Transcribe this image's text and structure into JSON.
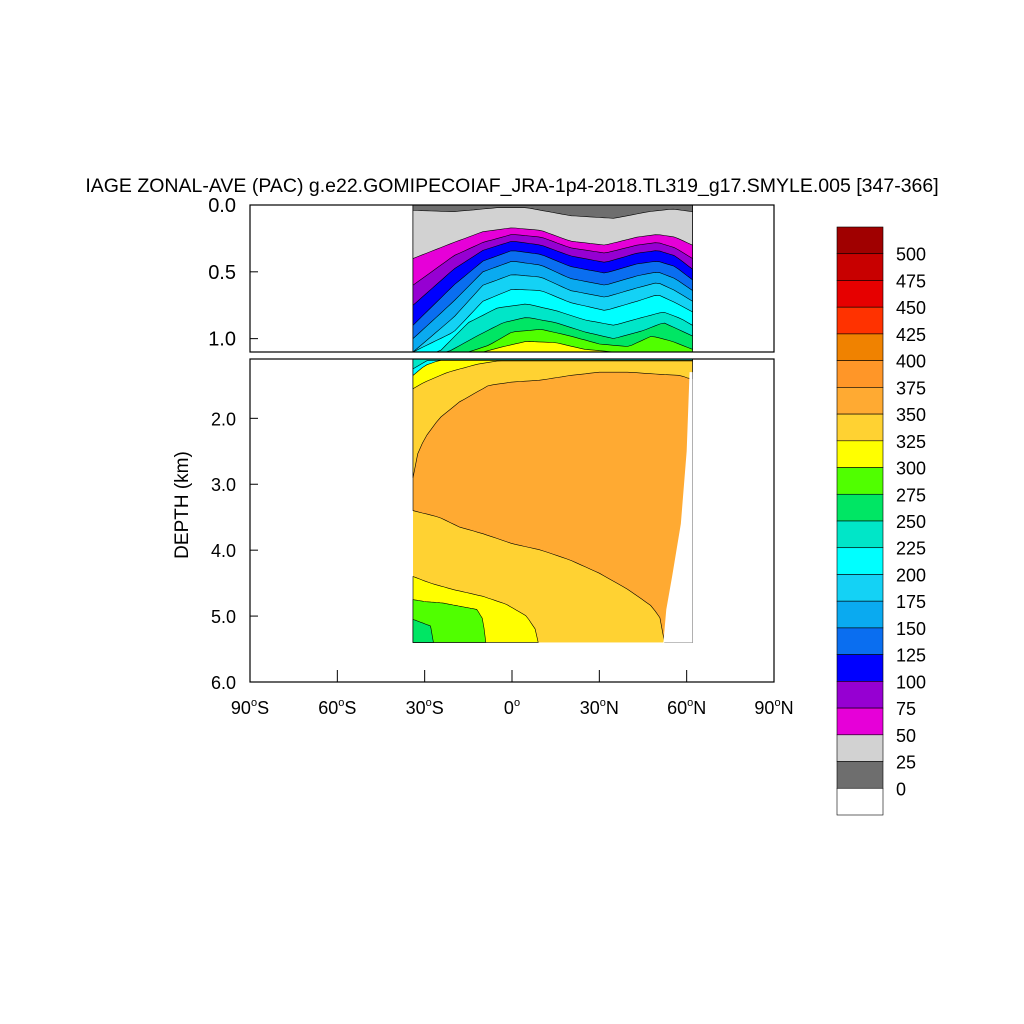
{
  "chart_data": {
    "type": "heatmap",
    "title": "IAGE ZONAL-AVE (PAC) g.e22.GOMIPECOIAF_JRA-1p4-2018.TL319_g17.SMYLE.005 [347-366]",
    "xlabel": "",
    "ylabel": "DEPTH (km)",
    "xlim": [
      -90,
      90
    ],
    "x_ticks": [
      {
        "value": -90,
        "label": "90",
        "suffix": "S"
      },
      {
        "value": -60,
        "label": "60",
        "suffix": "S"
      },
      {
        "value": -30,
        "label": "30",
        "suffix": "S"
      },
      {
        "value": 0,
        "label": "0",
        "suffix": ""
      },
      {
        "value": 30,
        "label": "30",
        "suffix": "N"
      },
      {
        "value": 60,
        "label": "60",
        "suffix": "N"
      },
      {
        "value": 90,
        "label": "90",
        "suffix": "N"
      }
    ],
    "upper_panel": {
      "ylim": [
        0.0,
        1.1
      ],
      "y_ticks": [
        "0.0",
        "0.5",
        "1.0"
      ],
      "y_tick_values": [
        0.0,
        0.5,
        1.0
      ]
    },
    "lower_panel": {
      "ylim": [
        1.1,
        6.0
      ],
      "y_ticks": [
        "2.0",
        "3.0",
        "4.0",
        "5.0",
        "6.0"
      ],
      "y_tick_values": [
        2.0,
        3.0,
        4.0,
        5.0,
        6.0
      ]
    },
    "data_extent": {
      "lat_min": -34,
      "lat_max": 62,
      "depth_max": 5.4
    },
    "colorbar": {
      "levels": [
        "0",
        "25",
        "50",
        "75",
        "100",
        "125",
        "150",
        "175",
        "200",
        "225",
        "250",
        "275",
        "300",
        "325",
        "350",
        "375",
        "400",
        "425",
        "450",
        "475",
        "500"
      ],
      "colors": [
        "#ffffff",
        "#6e6e6e",
        "#d2d2d2",
        "#e600d8",
        "#9600d2",
        "#0000ff",
        "#0a6ef0",
        "#0aaaf0",
        "#14d2f5",
        "#00ffff",
        "#00e6c8",
        "#00e664",
        "#50ff00",
        "#ffff00",
        "#ffd232",
        "#ffaa32",
        "#ff9628",
        "#f08200",
        "#ff3200",
        "#e60000",
        "#c80000",
        "#a00000"
      ]
    },
    "bands_upper": [
      {
        "color": "#6e6e6e",
        "depth_at_lat": [
          [
            -34,
            0.04
          ],
          [
            -20,
            0.05
          ],
          [
            -5,
            0.02
          ],
          [
            5,
            0.02
          ],
          [
            20,
            0.08
          ],
          [
            35,
            0.1
          ],
          [
            47,
            0.05
          ],
          [
            55,
            0.03
          ],
          [
            62,
            0.05
          ]
        ]
      },
      {
        "color": "#d2d2d2",
        "depth_at_lat": [
          [
            -34,
            0.4
          ],
          [
            -20,
            0.28
          ],
          [
            -10,
            0.2
          ],
          [
            0,
            0.17
          ],
          [
            10,
            0.19
          ],
          [
            20,
            0.27
          ],
          [
            32,
            0.3
          ],
          [
            43,
            0.24
          ],
          [
            50,
            0.22
          ],
          [
            56,
            0.24
          ],
          [
            62,
            0.3
          ]
        ]
      },
      {
        "color": "#e600d8",
        "depth_at_lat": [
          [
            -34,
            0.6
          ],
          [
            -20,
            0.38
          ],
          [
            -10,
            0.28
          ],
          [
            0,
            0.22
          ],
          [
            10,
            0.24
          ],
          [
            20,
            0.32
          ],
          [
            32,
            0.36
          ],
          [
            43,
            0.3
          ],
          [
            50,
            0.28
          ],
          [
            56,
            0.32
          ],
          [
            62,
            0.4
          ]
        ]
      },
      {
        "color": "#9600d2",
        "depth_at_lat": [
          [
            -34,
            0.75
          ],
          [
            -20,
            0.48
          ],
          [
            -10,
            0.34
          ],
          [
            0,
            0.27
          ],
          [
            10,
            0.3
          ],
          [
            20,
            0.38
          ],
          [
            32,
            0.43
          ],
          [
            43,
            0.36
          ],
          [
            50,
            0.34
          ],
          [
            56,
            0.38
          ],
          [
            62,
            0.48
          ]
        ]
      },
      {
        "color": "#0000ff",
        "depth_at_lat": [
          [
            -34,
            0.9
          ],
          [
            -20,
            0.6
          ],
          [
            -10,
            0.42
          ],
          [
            0,
            0.34
          ],
          [
            10,
            0.37
          ],
          [
            20,
            0.46
          ],
          [
            32,
            0.51
          ],
          [
            43,
            0.44
          ],
          [
            50,
            0.42
          ],
          [
            56,
            0.46
          ],
          [
            62,
            0.56
          ]
        ]
      },
      {
        "color": "#0a6ef0",
        "depth_at_lat": [
          [
            -34,
            1.0
          ],
          [
            -20,
            0.72
          ],
          [
            -10,
            0.5
          ],
          [
            0,
            0.42
          ],
          [
            10,
            0.45
          ],
          [
            20,
            0.55
          ],
          [
            32,
            0.6
          ],
          [
            43,
            0.53
          ],
          [
            50,
            0.5
          ],
          [
            56,
            0.55
          ],
          [
            62,
            0.64
          ]
        ]
      },
      {
        "color": "#0aaaf0",
        "depth_at_lat": [
          [
            -34,
            1.1
          ],
          [
            -20,
            0.84
          ],
          [
            -10,
            0.6
          ],
          [
            0,
            0.52
          ],
          [
            10,
            0.54
          ],
          [
            20,
            0.64
          ],
          [
            32,
            0.69
          ],
          [
            43,
            0.62
          ],
          [
            50,
            0.58
          ],
          [
            56,
            0.64
          ],
          [
            62,
            0.72
          ]
        ]
      },
      {
        "color": "#14d2f5",
        "depth_at_lat": [
          [
            -34,
            1.1
          ],
          [
            -20,
            0.95
          ],
          [
            -10,
            0.72
          ],
          [
            0,
            0.63
          ],
          [
            10,
            0.64
          ],
          [
            20,
            0.73
          ],
          [
            32,
            0.79
          ],
          [
            43,
            0.72
          ],
          [
            50,
            0.67
          ],
          [
            56,
            0.73
          ],
          [
            62,
            0.8
          ]
        ]
      },
      {
        "color": "#00ffff",
        "depth_at_lat": [
          [
            -34,
            1.1
          ],
          [
            -25,
            1.1
          ],
          [
            -15,
            0.88
          ],
          [
            -5,
            0.77
          ],
          [
            5,
            0.74
          ],
          [
            15,
            0.79
          ],
          [
            25,
            0.86
          ],
          [
            35,
            0.9
          ],
          [
            45,
            0.84
          ],
          [
            52,
            0.8
          ],
          [
            58,
            0.85
          ],
          [
            62,
            0.9
          ]
        ]
      },
      {
        "color": "#00e6c8",
        "depth_at_lat": [
          [
            -34,
            1.1
          ],
          [
            -22,
            1.1
          ],
          [
            -12,
            0.98
          ],
          [
            -3,
            0.88
          ],
          [
            5,
            0.84
          ],
          [
            15,
            0.88
          ],
          [
            25,
            0.95
          ],
          [
            35,
            1.0
          ],
          [
            45,
            0.94
          ],
          [
            52,
            0.88
          ],
          [
            58,
            0.94
          ],
          [
            62,
            0.98
          ]
        ]
      },
      {
        "color": "#00e664",
        "depth_at_lat": [
          [
            -34,
            1.1
          ],
          [
            -15,
            1.1
          ],
          [
            -8,
            1.05
          ],
          [
            0,
            0.95
          ],
          [
            10,
            0.93
          ],
          [
            20,
            0.98
          ],
          [
            30,
            1.04
          ],
          [
            40,
            1.06
          ],
          [
            48,
            0.98
          ],
          [
            55,
            1.02
          ],
          [
            62,
            1.08
          ]
        ]
      },
      {
        "color": "#50ff00",
        "depth_at_lat": [
          [
            -34,
            1.1
          ],
          [
            -10,
            1.1
          ],
          [
            -3,
            1.06
          ],
          [
            5,
            1.02
          ],
          [
            15,
            1.03
          ],
          [
            25,
            1.08
          ],
          [
            35,
            1.1
          ],
          [
            62,
            1.1
          ]
        ]
      },
      {
        "color": "#ffff00",
        "depth_at_lat": [
          [
            -34,
            1.1
          ],
          [
            62,
            1.1
          ]
        ]
      }
    ],
    "bands_lower": [
      {
        "color": "#00e6c8",
        "depth_at_lat": [
          [
            -34,
            1.25
          ],
          [
            -29,
            1.12
          ],
          [
            62,
            1.12
          ]
        ]
      },
      {
        "color": "#00ffff",
        "depth_at_lat": [
          [
            -34,
            1.35
          ],
          [
            -30,
            1.2
          ],
          [
            -25,
            1.12
          ],
          [
            62,
            1.12
          ]
        ]
      },
      {
        "color": "#ffff00",
        "depth_at_lat": [
          [
            -34,
            1.55
          ],
          [
            -30,
            1.45
          ],
          [
            -22,
            1.3
          ],
          [
            -12,
            1.18
          ],
          [
            -5,
            1.13
          ],
          [
            62,
            1.13
          ]
        ]
      },
      {
        "color": "#ffd232",
        "depth_at_lat": [
          [
            -34,
            2.9
          ],
          [
            -33,
            2.6
          ],
          [
            -30,
            2.3
          ],
          [
            -25,
            2.0
          ],
          [
            -18,
            1.75
          ],
          [
            -8,
            1.5
          ],
          [
            0,
            1.45
          ],
          [
            10,
            1.42
          ],
          [
            20,
            1.35
          ],
          [
            30,
            1.3
          ],
          [
            40,
            1.3
          ],
          [
            50,
            1.33
          ],
          [
            58,
            1.35
          ],
          [
            61,
            1.4
          ]
        ]
      },
      {
        "color": "#ffaa32",
        "depth_at_lat": [
          [
            -34,
            3.4
          ],
          [
            -25,
            3.5
          ],
          [
            -18,
            3.65
          ],
          [
            -10,
            3.75
          ],
          [
            0,
            3.9
          ],
          [
            10,
            4.0
          ],
          [
            20,
            4.15
          ],
          [
            30,
            4.35
          ],
          [
            40,
            4.6
          ],
          [
            48,
            4.85
          ],
          [
            52,
            5.1
          ],
          [
            52,
            5.4
          ]
        ]
      }
    ],
    "bands_bottom": [
      {
        "color": "#ffff00",
        "depth_at_lat": [
          [
            -34,
            4.4
          ],
          [
            -28,
            4.5
          ],
          [
            -20,
            4.6
          ],
          [
            -10,
            4.7
          ],
          [
            -2,
            4.82
          ],
          [
            5,
            5.0
          ],
          [
            8,
            5.2
          ],
          [
            9,
            5.4
          ]
        ]
      },
      {
        "color": "#50ff00",
        "depth_at_lat": [
          [
            -34,
            4.75
          ],
          [
            -30,
            4.78
          ],
          [
            -24,
            4.8
          ],
          [
            -18,
            4.85
          ],
          [
            -12,
            4.9
          ],
          [
            -10,
            5.05
          ],
          [
            -9,
            5.4
          ]
        ]
      },
      {
        "color": "#00e664",
        "depth_at_lat": [
          [
            -34,
            5.05
          ],
          [
            -31,
            5.1
          ],
          [
            -28,
            5.15
          ],
          [
            -27,
            5.4
          ]
        ]
      }
    ]
  }
}
